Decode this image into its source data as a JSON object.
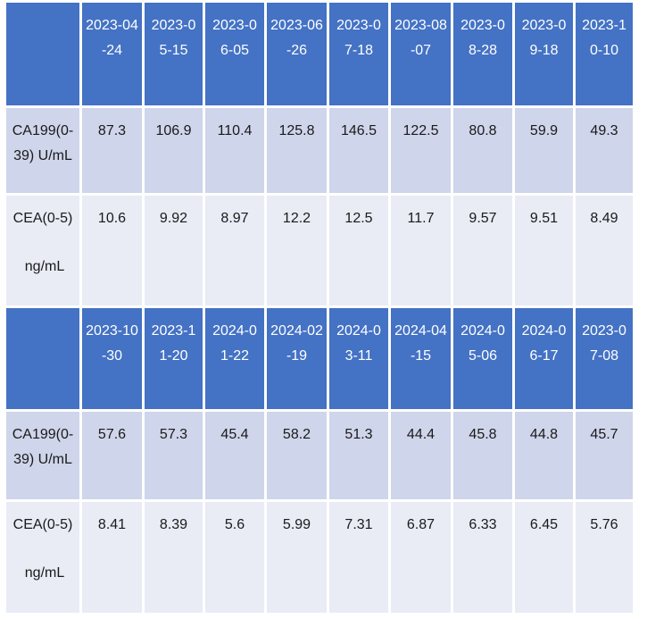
{
  "tables": [
    {
      "dates": [
        "2023-04-24",
        "2023-05-15",
        "2023-06-05",
        "2023-06-26",
        "2023-07-18",
        "2023-08-07",
        "2023-08-28",
        "2023-09-18",
        "2023-10-10"
      ],
      "ca199_label": "CA199(0-39) U/mL",
      "ca199": [
        "87.3",
        "106.9",
        "110.4",
        "125.8",
        "146.5",
        "122.5",
        "80.8",
        "59.9",
        "49.3"
      ],
      "cea_label_main": "CEA(0-5)",
      "cea_label_unit": "ng/mL",
      "cea": [
        "10.6",
        "9.92",
        "8.97",
        "12.2",
        "12.5",
        "11.7",
        "9.57",
        "9.51",
        "8.49"
      ]
    },
    {
      "dates": [
        "2023-10-30",
        "2023-11-20",
        "2024-01-22",
        "2024-02-19",
        "2024-03-11",
        "2024-04-15",
        "2024-05-06",
        "2024-06-17",
        "2023-07-08"
      ],
      "ca199_label": "CA199(0-39) U/mL",
      "ca199": [
        "57.6",
        "57.3",
        "45.4",
        "58.2",
        "51.3",
        "44.4",
        "45.8",
        "44.8",
        "45.7"
      ],
      "cea_label_main": "CEA(0-5)",
      "cea_label_unit": "ng/mL",
      "cea": [
        "8.41",
        "8.39",
        "5.6",
        "5.99",
        "7.31",
        "6.87",
        "6.33",
        "6.45",
        "5.76"
      ]
    }
  ]
}
